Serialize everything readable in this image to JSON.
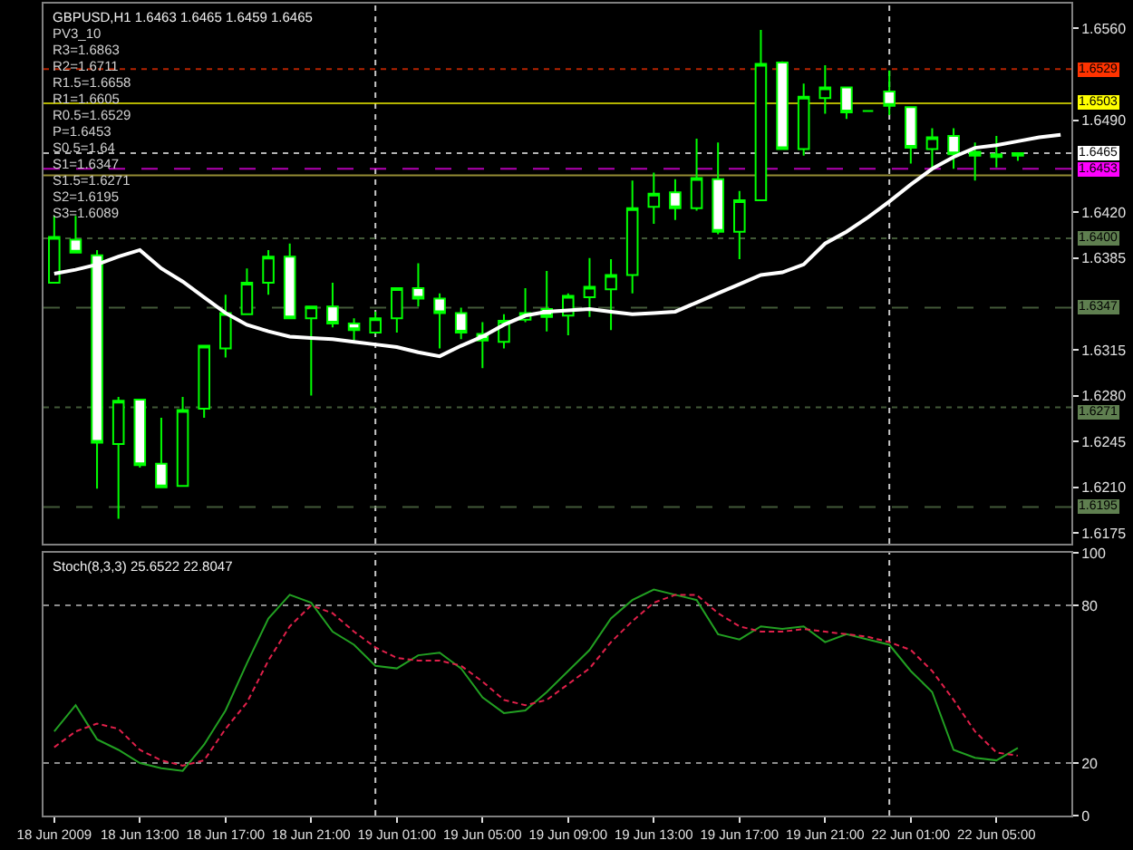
{
  "chart_data": [
    {
      "type": "candlestick",
      "title": "GBPUSD,H1 1.6463 1.6465 1.6459 1.6465",
      "subtitle": "PV3_10",
      "annotations": [
        "R3=1.6863",
        "R2=1.6711",
        "R1.5=1.6658",
        "R1=1.6605",
        "R0.5=1.6529",
        "P=1.6453",
        "S0.5=1.64",
        "S1=1.6347",
        "S1.5=1.6271",
        "S2=1.6195",
        "S3=1.6089"
      ],
      "categories": [
        null,
        null,
        null,
        null,
        null,
        null,
        null,
        null,
        null,
        null,
        null,
        null,
        null,
        null,
        null,
        null,
        null,
        null,
        null,
        null,
        null,
        null,
        null,
        null,
        null,
        null,
        null,
        null,
        null,
        null,
        null,
        null,
        null,
        null,
        null,
        null,
        null,
        null,
        null,
        null,
        null,
        null,
        null,
        null,
        null,
        null,
        null,
        null
      ],
      "ohlc": [
        [
          1.6366,
          1.6417,
          1.6366,
          1.6401
        ],
        [
          1.6399,
          1.6417,
          1.6389,
          1.6389
        ],
        [
          1.6387,
          1.6391,
          1.6209,
          1.6244
        ],
        [
          1.6243,
          1.6279,
          1.6186,
          1.6276
        ],
        [
          1.6277,
          1.6277,
          1.6225,
          1.6227
        ],
        [
          1.6228,
          1.6263,
          1.621,
          1.621
        ],
        [
          1.6211,
          1.6279,
          1.6211,
          1.6269
        ],
        [
          1.627,
          1.6318,
          1.6263,
          1.6318
        ],
        [
          1.6316,
          1.6357,
          1.6309,
          1.6343
        ],
        [
          1.6342,
          1.6377,
          1.6342,
          1.6366
        ],
        [
          1.6366,
          1.6391,
          1.6357,
          1.6386
        ],
        [
          1.6386,
          1.6396,
          1.6339,
          1.6339
        ],
        [
          1.6339,
          1.6348,
          1.628,
          1.6348
        ],
        [
          1.6348,
          1.6366,
          1.6332,
          1.6335
        ],
        [
          1.6335,
          1.6339,
          1.6322,
          1.633
        ],
        [
          1.6328,
          1.6344,
          1.6328,
          1.6339
        ],
        [
          1.6339,
          1.6362,
          1.6328,
          1.6362
        ],
        [
          1.6362,
          1.6381,
          1.6348,
          1.6354
        ],
        [
          1.6354,
          1.6358,
          1.6316,
          1.6343
        ],
        [
          1.6343,
          1.6347,
          1.6323,
          1.6328
        ],
        [
          1.6327,
          1.6336,
          1.6301,
          1.6322
        ],
        [
          1.6321,
          1.6342,
          1.6316,
          1.6337
        ],
        [
          1.6338,
          1.6362,
          1.6336,
          1.6343
        ],
        [
          1.6346,
          1.6375,
          1.6329,
          1.634
        ],
        [
          1.6341,
          1.6358,
          1.6326,
          1.6356
        ],
        [
          1.6355,
          1.6385,
          1.634,
          1.6363
        ],
        [
          1.6361,
          1.6384,
          1.633,
          1.6372
        ],
        [
          1.6372,
          1.6444,
          1.6358,
          1.6423
        ],
        [
          1.6424,
          1.645,
          1.6411,
          1.6434
        ],
        [
          1.6435,
          1.6445,
          1.6414,
          1.6423
        ],
        [
          1.6423,
          1.6476,
          1.6421,
          1.6446
        ],
        [
          1.6445,
          1.6473,
          1.6403,
          1.6405
        ],
        [
          1.6405,
          1.6436,
          1.6384,
          1.6429
        ],
        [
          1.6429,
          1.6559,
          1.6429,
          1.6533
        ],
        [
          1.6534,
          1.6535,
          1.6468,
          1.6468
        ],
        [
          1.6468,
          1.6518,
          1.6463,
          1.6508
        ],
        [
          1.6507,
          1.6532,
          1.6495,
          1.6515
        ],
        [
          1.6515,
          1.6515,
          1.6491,
          1.6496
        ],
        [
          1.6497,
          1.6497,
          1.6497,
          1.6497
        ],
        [
          1.6512,
          1.6528,
          1.6494,
          1.6501
        ],
        [
          1.65,
          1.65,
          1.6457,
          1.6469
        ],
        [
          1.6468,
          1.6484,
          1.6454,
          1.6477
        ],
        [
          1.6478,
          1.6484,
          1.6453,
          1.6464
        ],
        [
          1.6466,
          1.6473,
          1.6444,
          1.6463
        ],
        [
          1.6462,
          1.6478,
          1.6454,
          1.6464
        ],
        [
          1.6463,
          1.6465,
          1.6459,
          1.6465
        ],
        null,
        null
      ],
      "color": "#00ff00",
      "colors": [
        "#000000",
        "#ffffff",
        "#ffffff",
        "#000000",
        "#ffffff",
        "#ffffff",
        "#000000",
        "#000000",
        "#000000",
        "#000000",
        "#000000",
        "#ffffff",
        "#000000",
        "#ffffff",
        "#ffffff",
        "#000000",
        "#000000",
        "#ffffff",
        "#ffffff",
        "#ffffff",
        "#ffffff",
        "#000000",
        "#000000",
        "#ffffff",
        "#000000",
        "#000000",
        "#000000",
        "#000000",
        "#000000",
        "#ffffff",
        "#000000",
        "#ffffff",
        "#000000",
        "#000000",
        "#ffffff",
        "#000000",
        "#000000",
        "#ffffff",
        "#00ff00",
        "#ffffff",
        "#ffffff",
        "#000000",
        "#ffffff",
        "#00ff00",
        "#00ff00",
        "#000000",
        null,
        null
      ],
      "series": [
        {
          "type": "line",
          "color": "#ffffff",
          "values": [
            1.6373,
            1.6376,
            1.638,
            1.6386,
            1.6391,
            1.6377,
            1.6367,
            1.6355,
            1.6343,
            1.6334,
            1.6329,
            1.6325,
            1.6324,
            1.6323,
            1.6321,
            1.6319,
            1.6317,
            1.6313,
            1.631,
            1.6318,
            1.6325,
            1.6334,
            1.6341,
            1.6344,
            1.6345,
            1.6346,
            1.6344,
            1.6342,
            1.6343,
            1.6344,
            1.6351,
            1.6358,
            1.6365,
            1.6372,
            1.6374,
            1.638,
            1.6396,
            1.6405,
            1.6416,
            1.6428,
            1.6441,
            1.6453,
            1.6462,
            1.6469,
            1.6471,
            1.6474,
            1.6477,
            1.6479
          ]
        }
      ],
      "ylim": [
        1.6167,
        1.6579
      ],
      "yticks": [
        {
          "value": 1.656,
          "label": "1.6560"
        },
        {
          "value": 1.649,
          "label": "1.6490"
        },
        {
          "value": 1.642,
          "label": "1.6420"
        },
        1.6385,
        1.6315,
        {
          "value": 1.628,
          "label": "1.6280"
        },
        1.6245,
        {
          "value": 1.621,
          "label": "1.6210"
        },
        1.6175
      ],
      "tick_labels": "y",
      "ref_lines": [
        {
          "axis": "y",
          "value": 1.6529,
          "label": "1.6529",
          "color": "#ff3300",
          "line_style": "dotted"
        },
        {
          "axis": "y",
          "value": 1.6503,
          "label": "1.6503",
          "color": "#ffff00",
          "line_style": "solid"
        },
        {
          "axis": "y",
          "value": 1.6465,
          "label": "1.6465",
          "color": "#ffffff",
          "line_style": "dotted"
        },
        {
          "axis": "y",
          "value": 1.6453,
          "label": "1.6453",
          "color": "#ff00ff",
          "line_style": "dashed"
        },
        {
          "axis": "y",
          "value": 1.6448,
          "color": "#d4c84a",
          "line_style": "solid"
        },
        {
          "axis": "y",
          "value": 1.64,
          "label": "1.6400",
          "color": "#5f7f50",
          "line_style": "dotted"
        },
        {
          "axis": "y",
          "value": 1.6347,
          "label": "1.6347",
          "color": "#5f7f50",
          "line_style": "dashed"
        },
        {
          "axis": "y",
          "value": 1.6271,
          "label": "1.6271",
          "color": "#5f7f50",
          "line_style": "dotted"
        },
        {
          "axis": "y",
          "value": 1.6195,
          "label": "1.6195",
          "color": "#5f7f50",
          "line_style": "dashed"
        }
      ]
    },
    {
      "type": "line",
      "title": "Stoch(8,3,3) 25.6522 22.8047",
      "categories": [
        "18 Jun 2009",
        null,
        null,
        null,
        "18 Jun 13:00",
        null,
        null,
        null,
        "18 Jun 17:00",
        null,
        null,
        null,
        "18 Jun 21:00",
        null,
        null,
        null,
        "19 Jun 01:00",
        null,
        null,
        null,
        "19 Jun 05:00",
        null,
        null,
        null,
        "19 Jun 09:00",
        null,
        null,
        null,
        "19 Jun 13:00",
        null,
        null,
        null,
        "19 Jun 17:00",
        null,
        null,
        null,
        "19 Jun 21:00",
        null,
        null,
        null,
        "22 Jun 01:00",
        null,
        null,
        null,
        "22 Jun 05:00",
        null,
        null,
        null
      ],
      "series": [
        {
          "color": "#22a022",
          "line_style": "solid",
          "values": [
            32,
            42,
            29,
            25,
            20,
            18,
            17,
            27,
            40,
            58,
            75,
            84,
            81,
            70,
            65,
            57,
            56,
            61,
            62,
            56,
            45,
            39,
            40,
            47,
            55,
            63,
            75,
            82,
            86,
            84,
            82,
            69,
            67,
            72,
            71,
            72,
            66,
            69,
            67,
            65,
            55,
            47,
            25,
            22,
            21,
            25.7,
            null,
            null
          ]
        },
        {
          "color": "#e0204a",
          "line_style": "dashed",
          "values": [
            26,
            32,
            35,
            33,
            25,
            21,
            19,
            21,
            33,
            43,
            59,
            72,
            80,
            77,
            70,
            64,
            60,
            59,
            59,
            57,
            51,
            44,
            42,
            44,
            50,
            56,
            66,
            74,
            81,
            84,
            84,
            77,
            72,
            70,
            70,
            71,
            70,
            69,
            68,
            66,
            63,
            55,
            44,
            32,
            24,
            22.8,
            null,
            null
          ]
        }
      ],
      "ylim": [
        0,
        100
      ],
      "yticks": [
        0,
        20,
        80,
        100
      ],
      "ref_lines": [
        {
          "axis": "y",
          "value": 80,
          "color": "#c8c8c8",
          "line_style": "dotted"
        },
        {
          "axis": "y",
          "value": 20,
          "color": "#c8c8c8",
          "line_style": "dotted"
        }
      ]
    }
  ]
}
